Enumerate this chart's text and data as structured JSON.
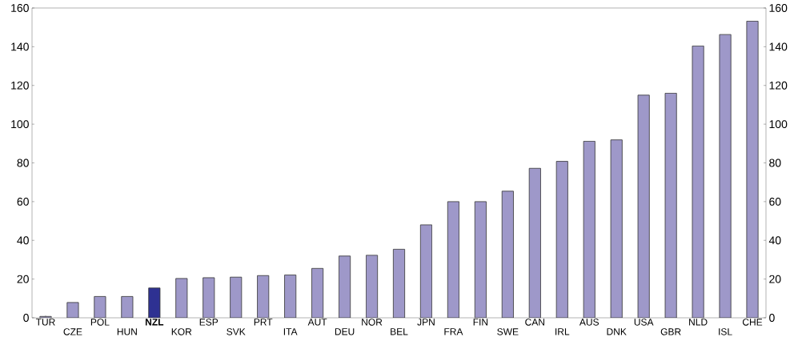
{
  "chart_data": {
    "type": "bar",
    "categories": [
      "TUR",
      "CZE",
      "POL",
      "HUN",
      "**NZL**",
      "KOR",
      "ESP",
      "SVK",
      "PRT",
      "ITA",
      "AUT",
      "DEU",
      "NOR",
      "BEL",
      "JPN",
      "FRA",
      "FIN",
      "SWE",
      "CAN",
      "IRL",
      "AUS",
      "DNK",
      "USA",
      "GBR",
      "NLD",
      "ISL",
      "CHE"
    ],
    "values": [
      0.7,
      7.9,
      11.0,
      11.0,
      15.4,
      20.3,
      20.7,
      21.0,
      21.8,
      22.1,
      25.5,
      31.9,
      32.3,
      35.4,
      48.0,
      60.0,
      60.0,
      65.4,
      77.2,
      80.8,
      91.2,
      91.9,
      115.0,
      116.0,
      140.4,
      146.3,
      153.2
    ],
    "colors": [
      "#9e98c9",
      "#9e98c9",
      "#9e98c9",
      "#9e98c9",
      "#2e3192",
      "#9e98c9",
      "#9e98c9",
      "#9e98c9",
      "#9e98c9",
      "#9e98c9",
      "#9e98c9",
      "#9e98c9",
      "#9e98c9",
      "#9e98c9",
      "#9e98c9",
      "#9e98c9",
      "#9e98c9",
      "#9e98c9",
      "#9e98c9",
      "#9e98c9",
      "#9e98c9",
      "#9e98c9",
      "#9e98c9",
      "#9e98c9",
      "#9e98c9",
      "#9e98c9",
      "#9e98c9"
    ],
    "ylim": [
      0,
      160
    ],
    "yticks": [
      0,
      20,
      40,
      60,
      80,
      100,
      120,
      140,
      160
    ],
    "y2lim": [
      0,
      160
    ],
    "y2ticks": [
      0,
      20,
      40,
      60,
      80,
      100,
      120,
      140,
      160
    ]
  }
}
